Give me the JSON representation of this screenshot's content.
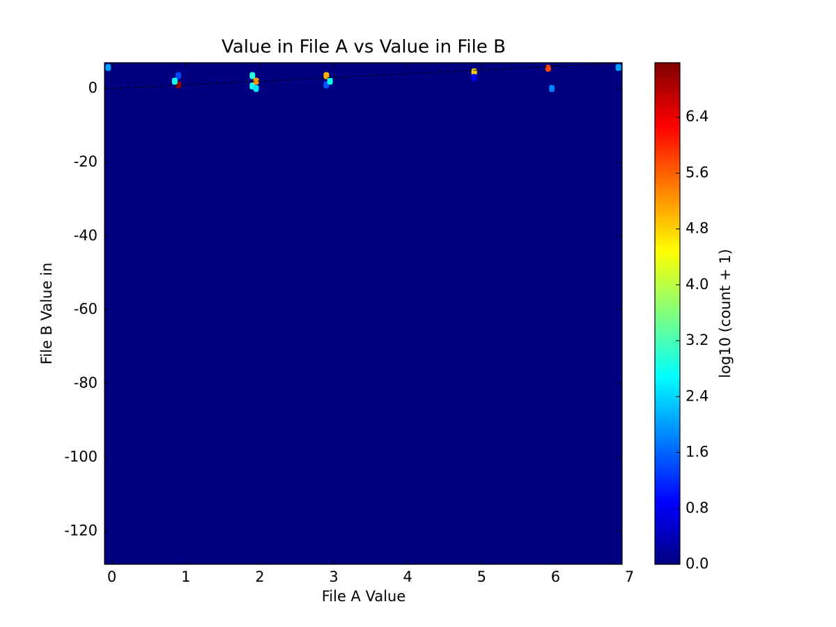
{
  "chart_data": {
    "type": "heatmap",
    "title": "Value in File A vs Value in File B",
    "xlabel": "File A Value",
    "ylabel": "File B Value in",
    "colorbar_label": "log10 (count + 1)",
    "colormap": "jet",
    "identity_line": true,
    "xlim": [
      -0.1,
      6.9
    ],
    "xticks": [
      0,
      1,
      2,
      3,
      4,
      5,
      6,
      7
    ],
    "ylim": [
      -129,
      7
    ],
    "yticks": [
      -120,
      -100,
      -80,
      -60,
      -40,
      -20,
      0
    ],
    "clim": [
      0,
      7.18
    ],
    "cticks": [
      {
        "value": 0,
        "label": "0.0"
      },
      {
        "value": 0.8,
        "label": "0.8"
      },
      {
        "value": 1.6,
        "label": "1.6"
      },
      {
        "value": 2.4,
        "label": "2.4"
      },
      {
        "value": 3.2,
        "label": "3.2"
      },
      {
        "value": 4,
        "label": "4.0"
      },
      {
        "value": 4.8,
        "label": "4.8"
      },
      {
        "value": 5.6,
        "label": "5.6"
      },
      {
        "value": 6.4,
        "label": "6.4"
      }
    ],
    "cells": {
      "x": [
        -0.05,
        0.9,
        0.9,
        0.85,
        1.9,
        1.9,
        1.95,
        1.95,
        2.9,
        2.9,
        2.95,
        4.9,
        4.9,
        5.9,
        5.95,
        6.85
      ],
      "y": [
        5.7,
        1,
        3.5,
        2,
        3.5,
        0.7,
        2,
        0,
        3.5,
        1,
        2,
        4.5,
        3,
        5.5,
        0,
        5.7
      ],
      "values": [
        2.0,
        7.0,
        1.4,
        2.8,
        3.0,
        2.8,
        5.2,
        2.5,
        5.0,
        1.5,
        2.8,
        4.8,
        0.9,
        5.8,
        1.8,
        2.0
      ]
    }
  }
}
